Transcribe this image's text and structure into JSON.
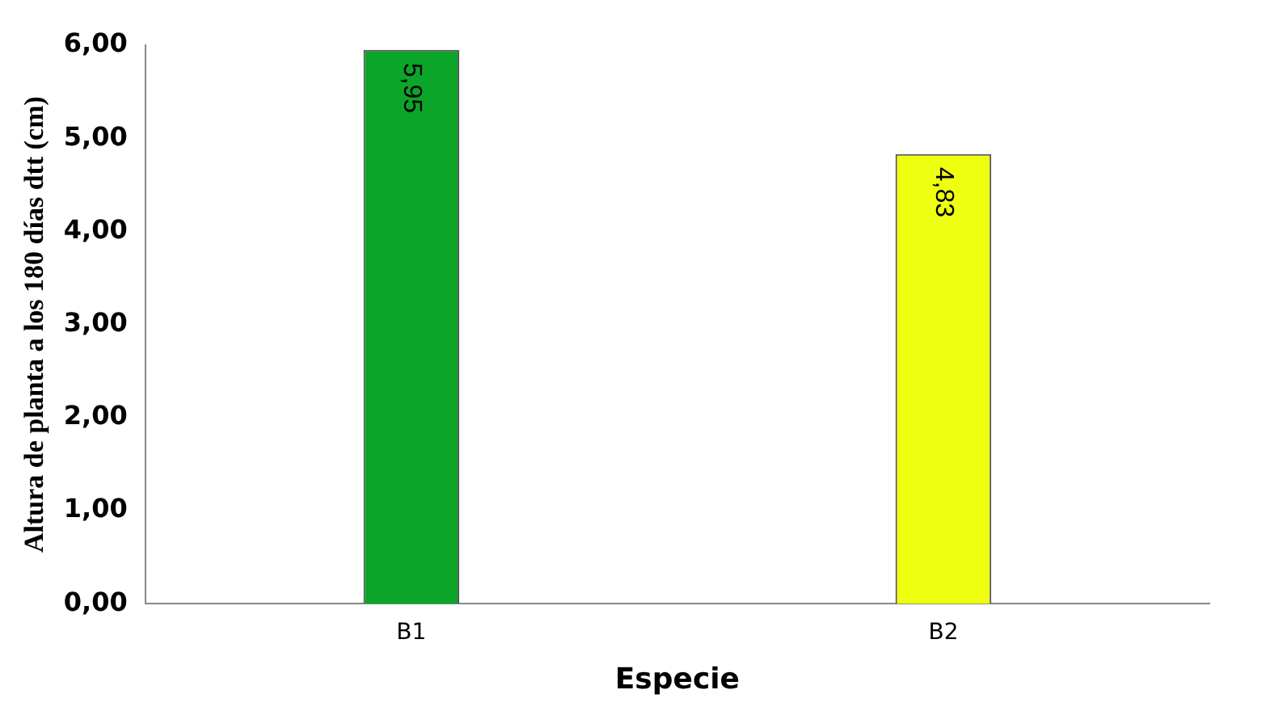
{
  "chart_data": {
    "type": "bar",
    "xlabel": "Especie",
    "ylabel": "Altura de planta a los 180 días dtt (cm)",
    "categories": [
      "B1",
      "B2"
    ],
    "values": [
      5.95,
      4.83
    ],
    "colors": [
      "#0ba52a",
      "#eeff10"
    ],
    "value_labels": [
      "5,95",
      "4,83"
    ],
    "ylim": [
      0,
      6
    ],
    "yticks": [
      {
        "value": 0,
        "label": "0,00"
      },
      {
        "value": 1,
        "label": "1,00"
      },
      {
        "value": 2,
        "label": "2,00"
      },
      {
        "value": 3,
        "label": "3,00"
      },
      {
        "value": 4,
        "label": "4,00"
      },
      {
        "value": 5,
        "label": "5,00"
      },
      {
        "value": 6,
        "label": "6,00"
      }
    ],
    "grid": false,
    "legend": false
  }
}
